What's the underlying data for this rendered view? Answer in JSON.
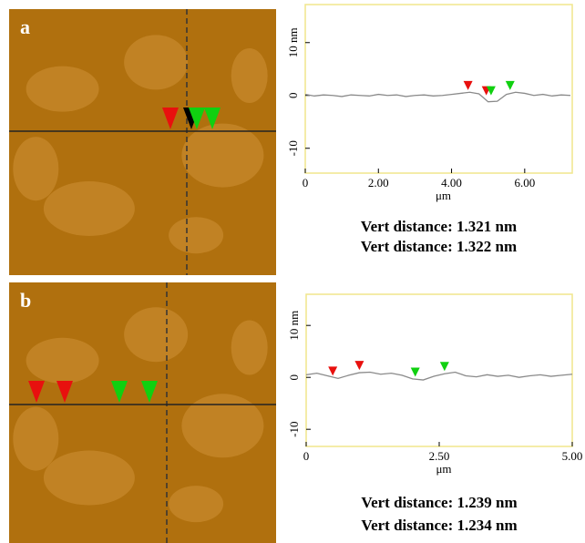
{
  "chart_data": [
    {
      "type": "line",
      "panel_label": "a",
      "xlabel": "μm",
      "xlim": [
        0,
        7.3
      ],
      "xticks": [
        0,
        {
          "value": 2,
          "label": "2.00"
        },
        {
          "value": 4,
          "label": "4.00"
        },
        {
          "value": 6,
          "label": "6.00"
        }
      ],
      "ylim": [
        -14.7,
        17.2
      ],
      "yticks": [
        {
          "value": 10,
          "label": "10 nm"
        },
        0,
        -10
      ],
      "x": [
        0,
        0.25,
        0.5,
        0.75,
        1,
        1.25,
        1.5,
        1.75,
        2,
        2.25,
        2.5,
        2.75,
        3,
        3.25,
        3.5,
        3.75,
        4,
        4.25,
        4.5,
        4.75,
        5,
        5.25,
        5.5,
        5.75,
        6,
        6.25,
        6.5,
        6.75,
        7,
        7.25
      ],
      "values": [
        0.2,
        -0.1,
        0.1,
        0,
        -0.2,
        0.1,
        0,
        -0.1,
        0.2,
        0,
        0.1,
        -0.2,
        0,
        0.1,
        -0.1,
        0,
        0.2,
        0.4,
        0.6,
        0.3,
        -1.2,
        -1.1,
        0.2,
        0.6,
        0.4,
        0,
        0.2,
        -0.1,
        0.1,
        0
      ],
      "color": "#8a8a8a",
      "markers": [
        {
          "x": 4.45,
          "y": 0.5,
          "color": "#e8100e"
        },
        {
          "x": 4.95,
          "y": -0.5,
          "color": "#e8100e"
        },
        {
          "x": 5.08,
          "y": -0.5,
          "color": "#10d010"
        },
        {
          "x": 5.6,
          "y": 0.5,
          "color": "#10d010"
        }
      ],
      "annotations": [
        {
          "text": "Vert distance: 1.321 nm",
          "color": "#e8100e"
        },
        {
          "text": "Vert distance: 1.322 nm",
          "color": "#10d010"
        }
      ]
    },
    {
      "type": "line",
      "panel_label": "b",
      "xlabel": "μm",
      "xlim": [
        0,
        5
      ],
      "xticks": [
        0,
        {
          "value": 2.5,
          "label": "2.50"
        },
        {
          "value": 5,
          "label": "5.00"
        }
      ],
      "ylim": [
        -13.3,
        16
      ],
      "yticks": [
        {
          "value": 10,
          "label": "10 nm"
        },
        0,
        -10
      ],
      "x": [
        0,
        0.2,
        0.4,
        0.6,
        0.8,
        1,
        1.2,
        1.4,
        1.6,
        1.8,
        2,
        2.2,
        2.4,
        2.6,
        2.8,
        3,
        3.2,
        3.4,
        3.6,
        3.8,
        4,
        4.2,
        4.4,
        4.6,
        4.8,
        5
      ],
      "values": [
        0.5,
        0.8,
        0.3,
        -0.2,
        0.4,
        0.9,
        1.0,
        0.6,
        0.8,
        0.4,
        -0.3,
        -0.5,
        0.2,
        0.7,
        1.0,
        0.3,
        0.1,
        0.5,
        0.2,
        0.4,
        0.0,
        0.3,
        0.5,
        0.2,
        0.4,
        0.6
      ],
      "color": "#8a8a8a",
      "markers": [
        {
          "x": 0.5,
          "y": -0.2,
          "color": "#e8100e"
        },
        {
          "x": 1.0,
          "y": 0.9,
          "color": "#e8100e"
        },
        {
          "x": 2.05,
          "y": -0.4,
          "color": "#10d010"
        },
        {
          "x": 2.6,
          "y": 0.7,
          "color": "#10d010"
        }
      ],
      "annotations": [
        {
          "text": "Vert distance: 1.239 nm",
          "color": "#e8100e"
        },
        {
          "text": "Vert distance: 1.234 nm",
          "color": "#10d010"
        }
      ]
    }
  ]
}
